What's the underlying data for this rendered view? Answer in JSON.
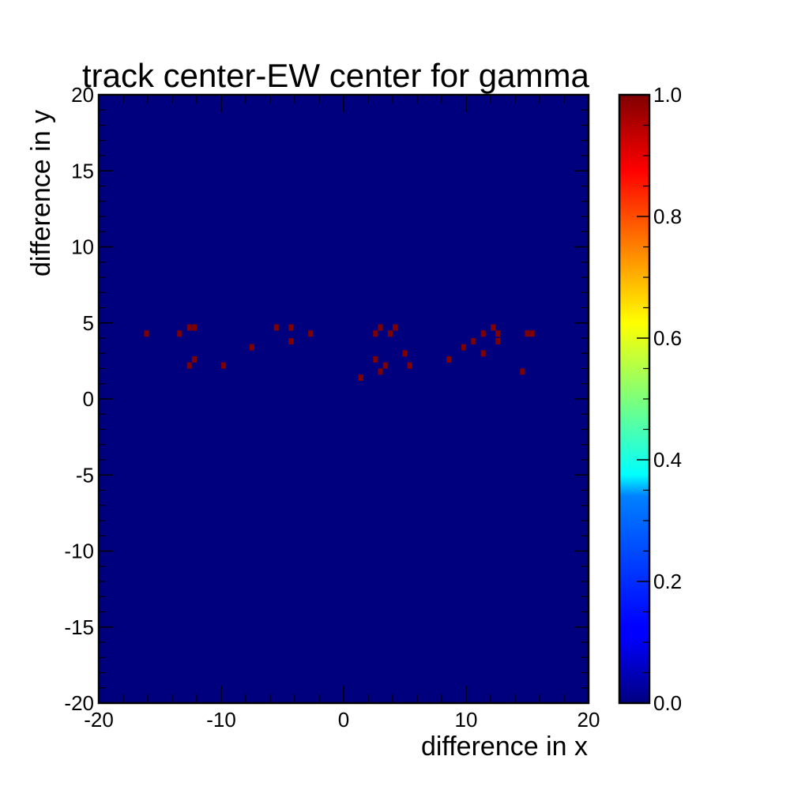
{
  "chart_data": {
    "type": "heatmap",
    "title": "track center-EW center for gamma",
    "xlabel": "difference in x",
    "ylabel": "difference in y",
    "xlim": [
      -20,
      20
    ],
    "ylim": [
      -20,
      20
    ],
    "xticks": [
      "-20",
      "-10",
      "0",
      "10",
      "20"
    ],
    "yticks": [
      "-20",
      "-15",
      "-10",
      "-5",
      "0",
      "5",
      "10",
      "15",
      "20"
    ],
    "colorbar": {
      "range": [
        0,
        1
      ],
      "ticks": [
        "0.0",
        "0.2",
        "0.4",
        "0.6",
        "0.8",
        "1.0"
      ],
      "colormap": "jet"
    },
    "background_value": 0.0,
    "cells_value": 1.0,
    "cells": [
      {
        "x": -16.1,
        "y": 4.3
      },
      {
        "x": -13.4,
        "y": 4.3
      },
      {
        "x": -12.6,
        "y": 4.7
      },
      {
        "x": -12.2,
        "y": 4.7
      },
      {
        "x": -12.6,
        "y": 2.2
      },
      {
        "x": -12.2,
        "y": 2.6
      },
      {
        "x": -9.8,
        "y": 2.2
      },
      {
        "x": -7.5,
        "y": 3.4
      },
      {
        "x": -5.5,
        "y": 4.7
      },
      {
        "x": -4.3,
        "y": 4.7
      },
      {
        "x": -4.3,
        "y": 3.8
      },
      {
        "x": -2.7,
        "y": 4.3
      },
      {
        "x": 1.4,
        "y": 1.4
      },
      {
        "x": 2.6,
        "y": 4.3
      },
      {
        "x": 3.0,
        "y": 4.7
      },
      {
        "x": 2.6,
        "y": 2.6
      },
      {
        "x": 3.0,
        "y": 1.8
      },
      {
        "x": 3.4,
        "y": 2.2
      },
      {
        "x": 3.8,
        "y": 4.3
      },
      {
        "x": 4.2,
        "y": 4.7
      },
      {
        "x": 5.0,
        "y": 3.0
      },
      {
        "x": 5.4,
        "y": 2.2
      },
      {
        "x": 8.6,
        "y": 2.6
      },
      {
        "x": 9.8,
        "y": 3.4
      },
      {
        "x": 10.6,
        "y": 3.8
      },
      {
        "x": 11.4,
        "y": 4.3
      },
      {
        "x": 11.4,
        "y": 3.0
      },
      {
        "x": 12.2,
        "y": 4.7
      },
      {
        "x": 12.6,
        "y": 4.3
      },
      {
        "x": 12.6,
        "y": 3.8
      },
      {
        "x": 14.6,
        "y": 1.8
      },
      {
        "x": 15.0,
        "y": 4.3
      },
      {
        "x": 15.4,
        "y": 4.3
      }
    ]
  }
}
